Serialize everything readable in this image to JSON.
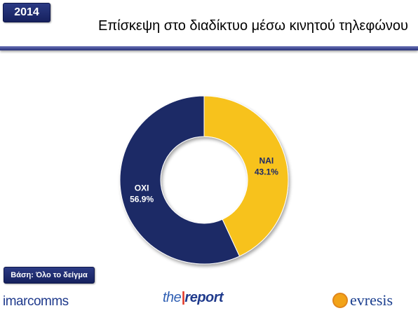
{
  "header": {
    "year": "2014",
    "title": "Επίσκεψη στο διαδίκτυο μέσω κινητού τηλεφώνου"
  },
  "chart_data": {
    "type": "pie",
    "donut": true,
    "title": "Επίσκεψη στο διαδίκτυο μέσω κινητού τηλεφώνου",
    "slices": [
      {
        "label": "NAI",
        "value": 43.1,
        "value_label": "43.1%",
        "color": "#f7c21a"
      },
      {
        "label": "OXI",
        "value": 56.9,
        "value_label": "56.9%",
        "color": "#1e2a66"
      }
    ]
  },
  "colors": {
    "badge": "#1f2b73",
    "rule": "#2f3884",
    "label_nai": "#1e2a66",
    "label_oxi": "#ffffff"
  },
  "footer": {
    "base": "Βάση: Όλο το δείγμα",
    "logo_imar": "imarcomms",
    "logo_report_the": "the",
    "logo_report_bar": "|",
    "logo_report_word": "report",
    "logo_evresis": "evresis"
  }
}
